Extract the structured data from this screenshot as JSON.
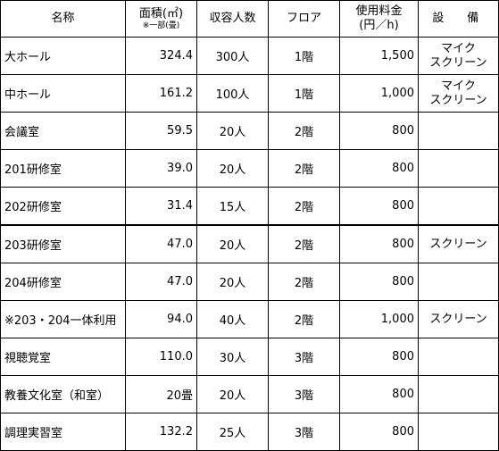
{
  "headers": {
    "name": "名称",
    "area": "面積(㎡)",
    "area_note": "※一部(畳)",
    "capacity": "収容人数",
    "floor": "フロア",
    "fee": "使用料金",
    "fee_unit": "(円／h)",
    "equipment": "設　備"
  },
  "rows": [
    {
      "name": "大ホール",
      "area": "324.4",
      "capacity": "300人",
      "floor": "1階",
      "fee": "1,500",
      "equipment": [
        "マイク",
        "スクリーン"
      ]
    },
    {
      "name": "中ホール",
      "area": "161.2",
      "capacity": "100人",
      "floor": "1階",
      "fee": "1,000",
      "equipment": [
        "マイク",
        "スクリーン"
      ]
    },
    {
      "name": "会議室",
      "area": "59.5",
      "capacity": "20人",
      "floor": "2階",
      "fee": "800",
      "equipment": []
    },
    {
      "name": "201研修室",
      "area": "39.0",
      "capacity": "20人",
      "floor": "2階",
      "fee": "800",
      "equipment": []
    },
    {
      "name": "202研修室",
      "area": "31.4",
      "capacity": "15人",
      "floor": "2階",
      "fee": "800",
      "equipment": []
    },
    {
      "name": "203研修室",
      "area": "47.0",
      "capacity": "20人",
      "floor": "2階",
      "fee": "800",
      "equipment": [
        "スクリーン"
      ]
    },
    {
      "name": "204研修室",
      "area": "47.0",
      "capacity": "20人",
      "floor": "2階",
      "fee": "800",
      "equipment": []
    },
    {
      "name": "※203・204一体利用",
      "area": "94.0",
      "capacity": "40人",
      "floor": "2階",
      "fee": "1,000",
      "equipment": [
        "スクリーン"
      ]
    },
    {
      "name": "視聴覚室",
      "area": "110.0",
      "capacity": "30人",
      "floor": "3階",
      "fee": "800",
      "equipment": []
    },
    {
      "name": "教養文化室（和室）",
      "area": "20畳",
      "capacity": "20人",
      "floor": "3階",
      "fee": "800",
      "equipment": []
    },
    {
      "name": "調理実習室",
      "area": "132.2",
      "capacity": "25人",
      "floor": "3階",
      "fee": "800",
      "equipment": []
    }
  ]
}
